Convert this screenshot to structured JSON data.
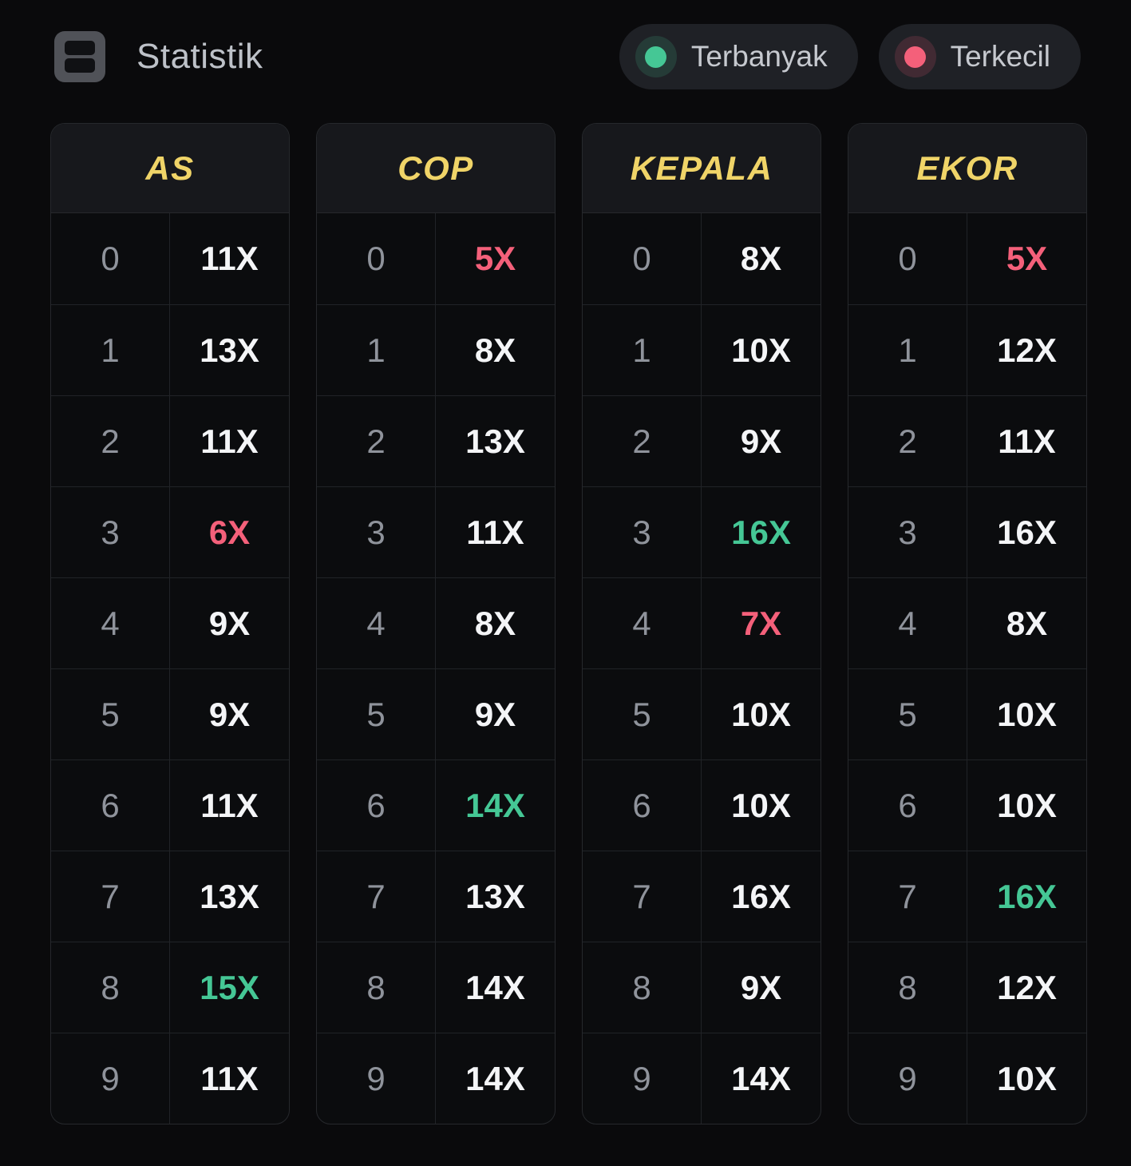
{
  "header": {
    "title": "Statistik",
    "icon": "stats-table-icon",
    "legend": [
      {
        "label": "Terbanyak",
        "dot_color": "#45c795",
        "ring_color": "rgba(69,199,149,0.16)"
      },
      {
        "label": "Terkecil",
        "dot_color": "#f4607a",
        "ring_color": "rgba(244,96,122,0.16)"
      }
    ]
  },
  "colors": {
    "page_background": "#0a0a0c",
    "table_background": "#0b0c0e",
    "table_header_background": "#17181c",
    "table_border": "#26282c",
    "header_text": "#f0d468",
    "digit_text": "#8f939b",
    "value_text": "#f4f5f7",
    "highlight_max": "#45c795",
    "highlight_min": "#f4607a",
    "pill_background": "#1f2126"
  },
  "tables": [
    {
      "title": "AS",
      "rows": [
        {
          "digit": "0",
          "value": "11X",
          "highlight": "none"
        },
        {
          "digit": "1",
          "value": "13X",
          "highlight": "none"
        },
        {
          "digit": "2",
          "value": "11X",
          "highlight": "none"
        },
        {
          "digit": "3",
          "value": "6X",
          "highlight": "min"
        },
        {
          "digit": "4",
          "value": "9X",
          "highlight": "none"
        },
        {
          "digit": "5",
          "value": "9X",
          "highlight": "none"
        },
        {
          "digit": "6",
          "value": "11X",
          "highlight": "none"
        },
        {
          "digit": "7",
          "value": "13X",
          "highlight": "none"
        },
        {
          "digit": "8",
          "value": "15X",
          "highlight": "max"
        },
        {
          "digit": "9",
          "value": "11X",
          "highlight": "none"
        }
      ]
    },
    {
      "title": "COP",
      "rows": [
        {
          "digit": "0",
          "value": "5X",
          "highlight": "min"
        },
        {
          "digit": "1",
          "value": "8X",
          "highlight": "none"
        },
        {
          "digit": "2",
          "value": "13X",
          "highlight": "none"
        },
        {
          "digit": "3",
          "value": "11X",
          "highlight": "none"
        },
        {
          "digit": "4",
          "value": "8X",
          "highlight": "none"
        },
        {
          "digit": "5",
          "value": "9X",
          "highlight": "none"
        },
        {
          "digit": "6",
          "value": "14X",
          "highlight": "max"
        },
        {
          "digit": "7",
          "value": "13X",
          "highlight": "none"
        },
        {
          "digit": "8",
          "value": "14X",
          "highlight": "none"
        },
        {
          "digit": "9",
          "value": "14X",
          "highlight": "none"
        }
      ]
    },
    {
      "title": "KEPALA",
      "rows": [
        {
          "digit": "0",
          "value": "8X",
          "highlight": "none"
        },
        {
          "digit": "1",
          "value": "10X",
          "highlight": "none"
        },
        {
          "digit": "2",
          "value": "9X",
          "highlight": "none"
        },
        {
          "digit": "3",
          "value": "16X",
          "highlight": "max"
        },
        {
          "digit": "4",
          "value": "7X",
          "highlight": "min"
        },
        {
          "digit": "5",
          "value": "10X",
          "highlight": "none"
        },
        {
          "digit": "6",
          "value": "10X",
          "highlight": "none"
        },
        {
          "digit": "7",
          "value": "16X",
          "highlight": "none"
        },
        {
          "digit": "8",
          "value": "9X",
          "highlight": "none"
        },
        {
          "digit": "9",
          "value": "14X",
          "highlight": "none"
        }
      ]
    },
    {
      "title": "EKOR",
      "rows": [
        {
          "digit": "0",
          "value": "5X",
          "highlight": "min"
        },
        {
          "digit": "1",
          "value": "12X",
          "highlight": "none"
        },
        {
          "digit": "2",
          "value": "11X",
          "highlight": "none"
        },
        {
          "digit": "3",
          "value": "16X",
          "highlight": "none"
        },
        {
          "digit": "4",
          "value": "8X",
          "highlight": "none"
        },
        {
          "digit": "5",
          "value": "10X",
          "highlight": "none"
        },
        {
          "digit": "6",
          "value": "10X",
          "highlight": "none"
        },
        {
          "digit": "7",
          "value": "16X",
          "highlight": "max"
        },
        {
          "digit": "8",
          "value": "12X",
          "highlight": "none"
        },
        {
          "digit": "9",
          "value": "10X",
          "highlight": "none"
        }
      ]
    }
  ]
}
